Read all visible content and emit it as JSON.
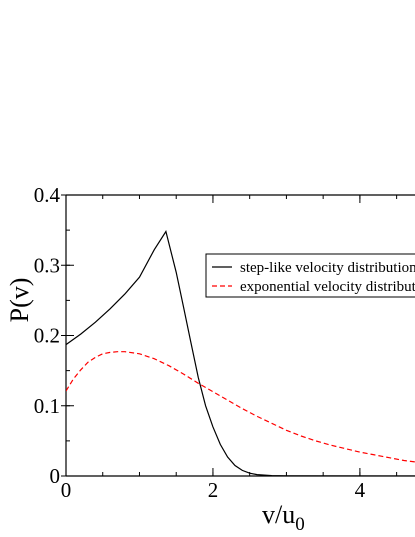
{
  "chart_data": {
    "type": "line",
    "title": "",
    "xlabel": "v/u",
    "xlabel_sub": "0",
    "ylabel": "P(v)",
    "xlim": [
      0,
      4.75
    ],
    "ylim": [
      0,
      0.4
    ],
    "x_ticks": [
      0,
      2,
      4
    ],
    "x_tick_labels": [
      "0",
      "2",
      "4"
    ],
    "y_ticks": [
      0,
      0.1,
      0.2,
      0.3,
      0.4
    ],
    "y_tick_labels": [
      "0",
      "0.1",
      "0.2",
      "0.3",
      "0.4"
    ],
    "x_minor_step": 0.5,
    "y_minor_step": 0.05,
    "grid": false,
    "legend_position": "right",
    "series": [
      {
        "name": "step-like velocity distribution",
        "color": "#000000",
        "dash": "solid",
        "points": [
          [
            0,
            0.187
          ],
          [
            0.2,
            0.202
          ],
          [
            0.4,
            0.219
          ],
          [
            0.6,
            0.238
          ],
          [
            0.8,
            0.259
          ],
          [
            1.0,
            0.283
          ],
          [
            1.2,
            0.322
          ],
          [
            1.36,
            0.348
          ],
          [
            1.5,
            0.29
          ],
          [
            1.6,
            0.24
          ],
          [
            1.7,
            0.19
          ],
          [
            1.8,
            0.14
          ],
          [
            1.9,
            0.1
          ],
          [
            2.0,
            0.07
          ],
          [
            2.1,
            0.045
          ],
          [
            2.2,
            0.027
          ],
          [
            2.3,
            0.015
          ],
          [
            2.4,
            0.008
          ],
          [
            2.5,
            0.004
          ],
          [
            2.6,
            0.002
          ],
          [
            2.8,
            0.0005
          ],
          [
            3.0,
            0.0001
          ],
          [
            4.75,
            0
          ]
        ]
      },
      {
        "name": "exponential velocity distribution",
        "color": "#ff0000",
        "dash": "dashed",
        "points": [
          [
            0,
            0.121
          ],
          [
            0.1,
            0.138
          ],
          [
            0.2,
            0.151
          ],
          [
            0.3,
            0.162
          ],
          [
            0.4,
            0.169
          ],
          [
            0.5,
            0.174
          ],
          [
            0.6,
            0.176
          ],
          [
            0.7,
            0.177
          ],
          [
            0.8,
            0.177
          ],
          [
            1.0,
            0.174
          ],
          [
            1.2,
            0.167
          ],
          [
            1.4,
            0.157
          ],
          [
            1.6,
            0.145
          ],
          [
            1.8,
            0.132
          ],
          [
            2.0,
            0.12
          ],
          [
            2.2,
            0.108
          ],
          [
            2.4,
            0.096
          ],
          [
            2.6,
            0.085
          ],
          [
            2.8,
            0.075
          ],
          [
            3.0,
            0.065
          ],
          [
            3.2,
            0.057
          ],
          [
            3.4,
            0.05
          ],
          [
            3.6,
            0.044
          ],
          [
            3.8,
            0.039
          ],
          [
            4.0,
            0.034
          ],
          [
            4.2,
            0.03
          ],
          [
            4.4,
            0.026
          ],
          [
            4.6,
            0.022
          ],
          [
            4.75,
            0.02
          ]
        ]
      }
    ]
  }
}
